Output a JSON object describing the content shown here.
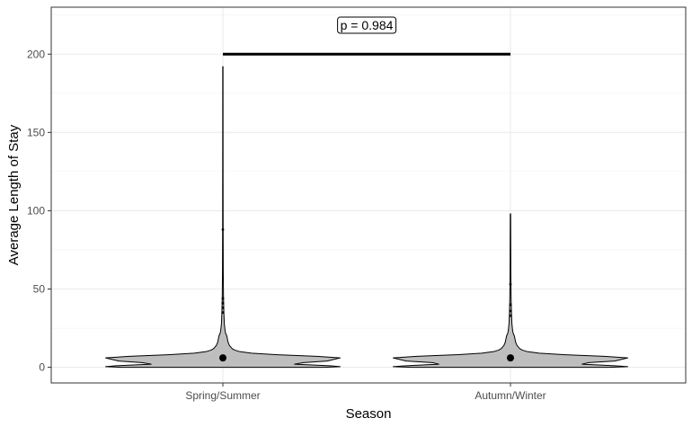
{
  "chart_data": {
    "type": "violin",
    "xlabel": "Season",
    "ylabel": "Average Length of Stay",
    "categories": [
      "Spring/Summer",
      "Autumn/Winter"
    ],
    "ylim": [
      -10,
      230
    ],
    "yticks": [
      0,
      50,
      100,
      150,
      200
    ],
    "grid": true,
    "violin_color": "#bebebe",
    "series": [
      {
        "category": "Spring/Summer",
        "mean": 6,
        "min": 0,
        "max": 192,
        "outliers": [
          88,
          44,
          41,
          38,
          35
        ],
        "profile": [
          [
            0,
            0.78
          ],
          [
            0.4,
            0.9
          ],
          [
            1,
            0.82
          ],
          [
            2,
            0.55
          ],
          [
            3,
            0.62
          ],
          [
            4,
            0.8
          ],
          [
            5,
            0.85
          ],
          [
            6,
            0.9
          ],
          [
            7,
            0.72
          ],
          [
            8,
            0.42
          ],
          [
            9,
            0.22
          ],
          [
            10,
            0.13
          ],
          [
            11,
            0.09
          ],
          [
            12,
            0.07
          ],
          [
            14,
            0.05
          ],
          [
            16,
            0.04
          ],
          [
            18,
            0.035
          ],
          [
            20,
            0.03
          ],
          [
            22,
            0.02
          ],
          [
            24,
            0.016
          ],
          [
            28,
            0.011
          ],
          [
            34,
            0.008
          ],
          [
            44,
            0.005
          ],
          [
            60,
            0.003
          ],
          [
            90,
            0.002
          ],
          [
            130,
            0.0015
          ],
          [
            192,
            0.0012
          ]
        ]
      },
      {
        "category": "Autumn/Winter",
        "mean": 6,
        "min": 0,
        "max": 98,
        "outliers": [
          53,
          40,
          36,
          33
        ],
        "profile": [
          [
            0,
            0.76
          ],
          [
            0.4,
            0.9
          ],
          [
            1,
            0.8
          ],
          [
            2,
            0.55
          ],
          [
            3,
            0.6
          ],
          [
            4,
            0.8
          ],
          [
            5,
            0.85
          ],
          [
            6,
            0.9
          ],
          [
            7,
            0.72
          ],
          [
            8,
            0.42
          ],
          [
            9,
            0.22
          ],
          [
            10,
            0.13
          ],
          [
            11,
            0.09
          ],
          [
            12,
            0.07
          ],
          [
            14,
            0.05
          ],
          [
            16,
            0.04
          ],
          [
            18,
            0.035
          ],
          [
            20,
            0.03
          ],
          [
            22,
            0.02
          ],
          [
            24,
            0.016
          ],
          [
            28,
            0.011
          ],
          [
            34,
            0.008
          ],
          [
            44,
            0.005
          ],
          [
            60,
            0.003
          ],
          [
            98,
            0.0015
          ]
        ]
      }
    ],
    "comparison": {
      "from": "Spring/Summer",
      "to": "Autumn/Winter",
      "y": 200,
      "label": "p = 0.984"
    }
  }
}
